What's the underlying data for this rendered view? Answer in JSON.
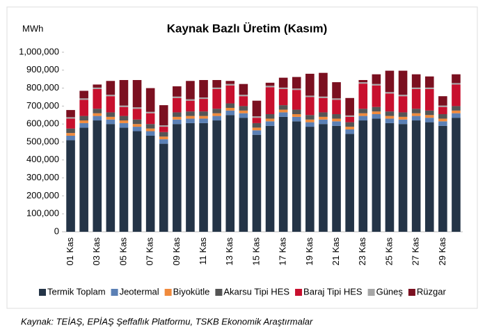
{
  "chart_data": {
    "type": "stacked_bar",
    "title": "Kaynak Bazlı Üretim (Kasım)",
    "y_label": "MWh",
    "source": "Kaynak: TEİAŞ, EPİAŞ Şeffaflık Platformu, TSKB Ekonomik Araştırmalar",
    "categories": [
      "01 Kas",
      null,
      "03 Kas",
      null,
      "05 Kas",
      null,
      "07 Kas",
      null,
      "09 Kas",
      null,
      "11 Kas",
      null,
      "13 Kas",
      null,
      "15 Kas",
      null,
      "17 Kas",
      null,
      "19 Kas",
      null,
      "21 Kas",
      null,
      "23 Kas",
      null,
      "25 Kas",
      null,
      "27 Kas",
      null,
      "29 Kas",
      null
    ],
    "ylim": [
      0,
      1000000
    ],
    "yticks": [
      0,
      {
        "value": 100000,
        "label": "100,000"
      },
      {
        "value": 200000,
        "label": "200,000"
      },
      {
        "value": 300000,
        "label": "300,000"
      },
      {
        "value": 400000,
        "label": "400,000"
      },
      {
        "value": 500000,
        "label": "500,000"
      },
      {
        "value": 600000,
        "label": "600,000"
      },
      {
        "value": 700000,
        "label": "700,000"
      },
      {
        "value": 800000,
        "label": "800,000"
      },
      {
        "value": 900000,
        "label": "900,000"
      },
      {
        "value": 1000000,
        "label": "1,000,000"
      }
    ],
    "legend": "bottom",
    "series": [
      {
        "name": "Termik Toplam",
        "color": "#243447",
        "values": [
          510000,
          580000,
          620000,
          600000,
          580000,
          560000,
          535000,
          490000,
          600000,
          605000,
          605000,
          620000,
          650000,
          635000,
          540000,
          590000,
          640000,
          615000,
          585000,
          600000,
          590000,
          545000,
          620000,
          630000,
          605000,
          600000,
          620000,
          610000,
          590000,
          635000
        ]
      },
      {
        "name": "Jeotermal",
        "color": "#5b80b5",
        "values": [
          25000,
          25000,
          25000,
          25000,
          25000,
          25000,
          25000,
          25000,
          25000,
          25000,
          25000,
          25000,
          25000,
          25000,
          25000,
          25000,
          25000,
          25000,
          25000,
          25000,
          25000,
          25000,
          25000,
          25000,
          25000,
          25000,
          25000,
          25000,
          25000,
          25000
        ]
      },
      {
        "name": "Biyokütle",
        "color": "#f08a3c",
        "values": [
          15000,
          15000,
          15000,
          15000,
          15000,
          15000,
          15000,
          15000,
          15000,
          15000,
          15000,
          15000,
          15000,
          15000,
          15000,
          15000,
          15000,
          15000,
          15000,
          15000,
          15000,
          15000,
          15000,
          15000,
          15000,
          15000,
          15000,
          15000,
          15000,
          15000
        ]
      },
      {
        "name": "Akarsu Tipi HES",
        "color": "#555555",
        "values": [
          25000,
          25000,
          25000,
          25000,
          25000,
          25000,
          25000,
          25000,
          25000,
          25000,
          25000,
          25000,
          25000,
          25000,
          25000,
          25000,
          25000,
          25000,
          25000,
          25000,
          25000,
          25000,
          25000,
          25000,
          25000,
          25000,
          25000,
          25000,
          25000,
          25000
        ]
      },
      {
        "name": "Baraj Tipi HES",
        "color": "#c8102e",
        "values": [
          55000,
          90000,
          110000,
          90000,
          50000,
          60000,
          60000,
          30000,
          80000,
          60000,
          70000,
          110000,
          100000,
          55000,
          30000,
          150000,
          90000,
          110000,
          100000,
          80000,
          80000,
          30000,
          140000,
          120000,
          100000,
          90000,
          110000,
          120000,
          40000,
          120000
        ]
      },
      {
        "name": "Güneş",
        "color": "#a6a6a6",
        "values": [
          8000,
          8000,
          8000,
          8000,
          8000,
          8000,
          8000,
          8000,
          8000,
          8000,
          8000,
          8000,
          8000,
          8000,
          8000,
          8000,
          8000,
          8000,
          8000,
          8000,
          8000,
          8000,
          8000,
          8000,
          8000,
          8000,
          8000,
          8000,
          8000,
          8000
        ]
      },
      {
        "name": "Rüzgar",
        "color": "#7b1020",
        "values": [
          40000,
          42000,
          17000,
          77000,
          142000,
          152000,
          132000,
          112000,
          57000,
          102000,
          97000,
          42000,
          17000,
          60000,
          87000,
          17000,
          55000,
          64000,
          122000,
          132000,
          90000,
          97000,
          12000,
          54000,
          119000,
          134000,
          74000,
          62000,
          52000,
          49000
        ]
      }
    ]
  }
}
